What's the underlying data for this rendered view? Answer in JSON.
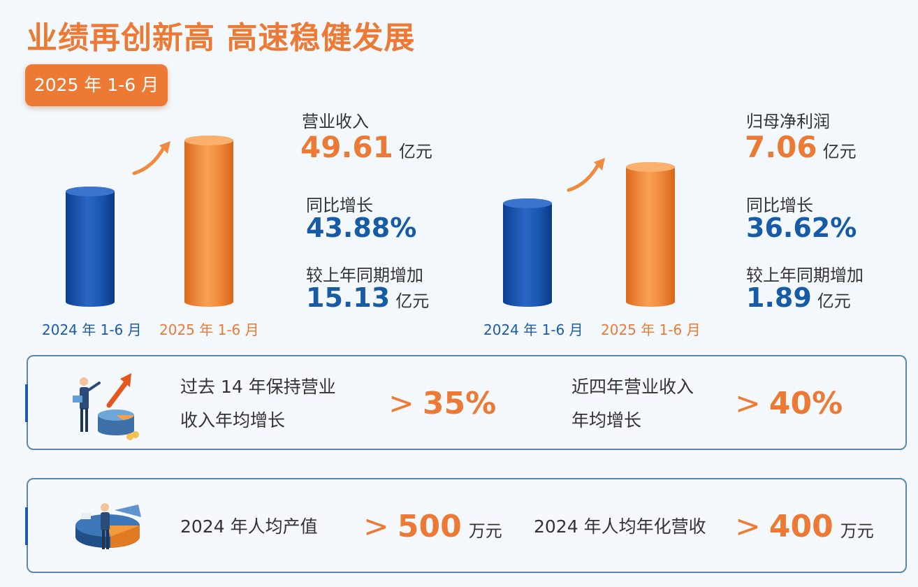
{
  "title": "业绩再创新高  高速稳健发展",
  "period_badge": "2025 年 1-6 月",
  "revenue": {
    "label": "营业收入",
    "value": "49.61",
    "unit": "亿元",
    "yoy_label": "同比增长",
    "yoy_value": "43.88%",
    "increase_label": "较上年同期增加",
    "increase_value": "15.13",
    "increase_unit": "亿元",
    "bar_labels": [
      "2024 年 1-6 月",
      "2025 年 1-6 月"
    ]
  },
  "net_profit": {
    "label": "归母净利润",
    "value": "7.06",
    "unit": "亿元",
    "yoy_label": "同比增长",
    "yoy_value": "36.62%",
    "increase_label": "较上年同期增加",
    "increase_value": "1.89",
    "increase_unit": "亿元",
    "bar_labels": [
      "2024 年 1-6 月",
      "2025 年 1-6 月"
    ]
  },
  "growth_panel": {
    "item1_line1": "过去 14 年保持营业",
    "item1_line2": "收入年均增长",
    "item1_symbol": ">",
    "item1_value": "35%",
    "item2_line1": "近四年营业收入",
    "item2_line2": "年均增长",
    "item2_symbol": ">",
    "item2_value": "40%"
  },
  "per_capita_panel": {
    "item1_label": "2024 年人均产值",
    "item1_symbol": ">",
    "item1_value": "500",
    "item1_unit": "万元",
    "item2_label": "2024 年人均年化营收",
    "item2_symbol": ">",
    "item2_value": "400",
    "item2_unit": "万元"
  },
  "colors": {
    "accent_orange": "#ec7a34",
    "accent_blue": "#175aa6",
    "border": "#5d85ab",
    "background": "#f3f8fc"
  }
}
